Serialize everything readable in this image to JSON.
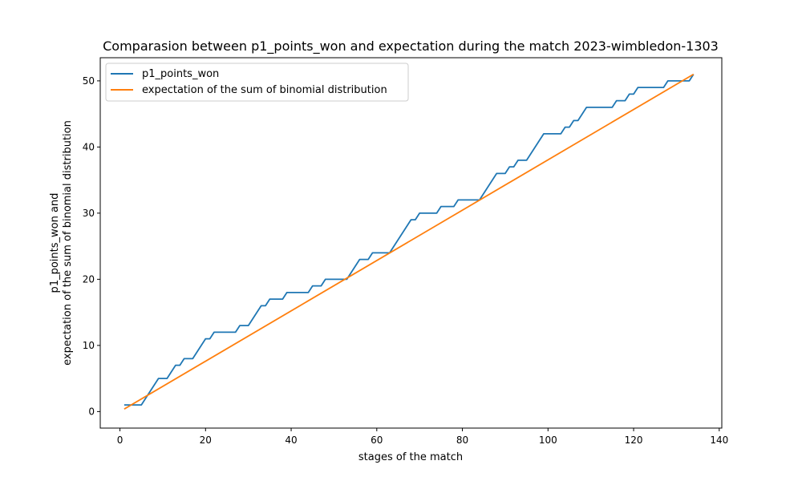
{
  "chart_data": {
    "type": "line",
    "title": "Comparasion between p1_points_won and expectation during the match 2023-wimbledon-1303",
    "xlabel": "stages of the match",
    "ylabel_line1": "p1_points_won and",
    "ylabel_line2": "expectation of the sum of binomial distribution",
    "xlim": [
      -4.6,
      140.6
    ],
    "ylim": [
      -2.5,
      53.5
    ],
    "xticks": [
      0,
      20,
      40,
      60,
      80,
      100,
      120,
      140
    ],
    "yticks": [
      0,
      10,
      20,
      30,
      40,
      50
    ],
    "grid": false,
    "legend_position": "upper-left",
    "series": [
      {
        "name": "p1_points_won",
        "color": "#1f77b4",
        "x": [
          1,
          2,
          3,
          4,
          5,
          6,
          7,
          8,
          9,
          10,
          11,
          12,
          13,
          14,
          15,
          16,
          17,
          18,
          19,
          20,
          21,
          22,
          23,
          24,
          25,
          26,
          27,
          28,
          29,
          30,
          31,
          32,
          33,
          34,
          35,
          36,
          37,
          38,
          39,
          40,
          41,
          42,
          43,
          44,
          45,
          46,
          47,
          48,
          49,
          50,
          51,
          52,
          53,
          54,
          55,
          56,
          57,
          58,
          59,
          60,
          61,
          62,
          63,
          64,
          65,
          66,
          67,
          68,
          69,
          70,
          71,
          72,
          73,
          74,
          75,
          76,
          77,
          78,
          79,
          80,
          81,
          82,
          83,
          84,
          85,
          86,
          87,
          88,
          89,
          90,
          91,
          92,
          93,
          94,
          95,
          96,
          97,
          98,
          99,
          100,
          101,
          102,
          103,
          104,
          105,
          106,
          107,
          108,
          109,
          110,
          111,
          112,
          113,
          114,
          115,
          116,
          117,
          118,
          119,
          120,
          121,
          122,
          123,
          124,
          125,
          126,
          127,
          128,
          129,
          130,
          131,
          132,
          133,
          134
        ],
        "y": [
          1,
          1,
          1,
          1,
          1,
          2,
          3,
          4,
          5,
          5,
          5,
          6,
          7,
          7,
          8,
          8,
          8,
          9,
          10,
          11,
          11,
          12,
          12,
          12,
          12,
          12,
          12,
          13,
          13,
          13,
          14,
          15,
          16,
          16,
          17,
          17,
          17,
          17,
          18,
          18,
          18,
          18,
          18,
          18,
          19,
          19,
          19,
          20,
          20,
          20,
          20,
          20,
          20,
          21,
          22,
          23,
          23,
          23,
          24,
          24,
          24,
          24,
          24,
          25,
          26,
          27,
          28,
          29,
          29,
          30,
          30,
          30,
          30,
          30,
          31,
          31,
          31,
          31,
          32,
          32,
          32,
          32,
          32,
          32,
          33,
          34,
          35,
          36,
          36,
          36,
          37,
          37,
          38,
          38,
          38,
          39,
          40,
          41,
          42,
          42,
          42,
          42,
          42,
          43,
          43,
          44,
          44,
          45,
          46,
          46,
          46,
          46,
          46,
          46,
          46,
          47,
          47,
          47,
          48,
          48,
          49,
          49,
          49,
          49,
          49,
          49,
          49,
          50,
          50,
          50,
          50,
          50,
          50,
          51
        ]
      },
      {
        "name": "expectation of the sum of binomial distribution",
        "color": "#ff7f0e",
        "x": [
          1,
          134
        ],
        "y": [
          0.38,
          51
        ]
      }
    ]
  }
}
